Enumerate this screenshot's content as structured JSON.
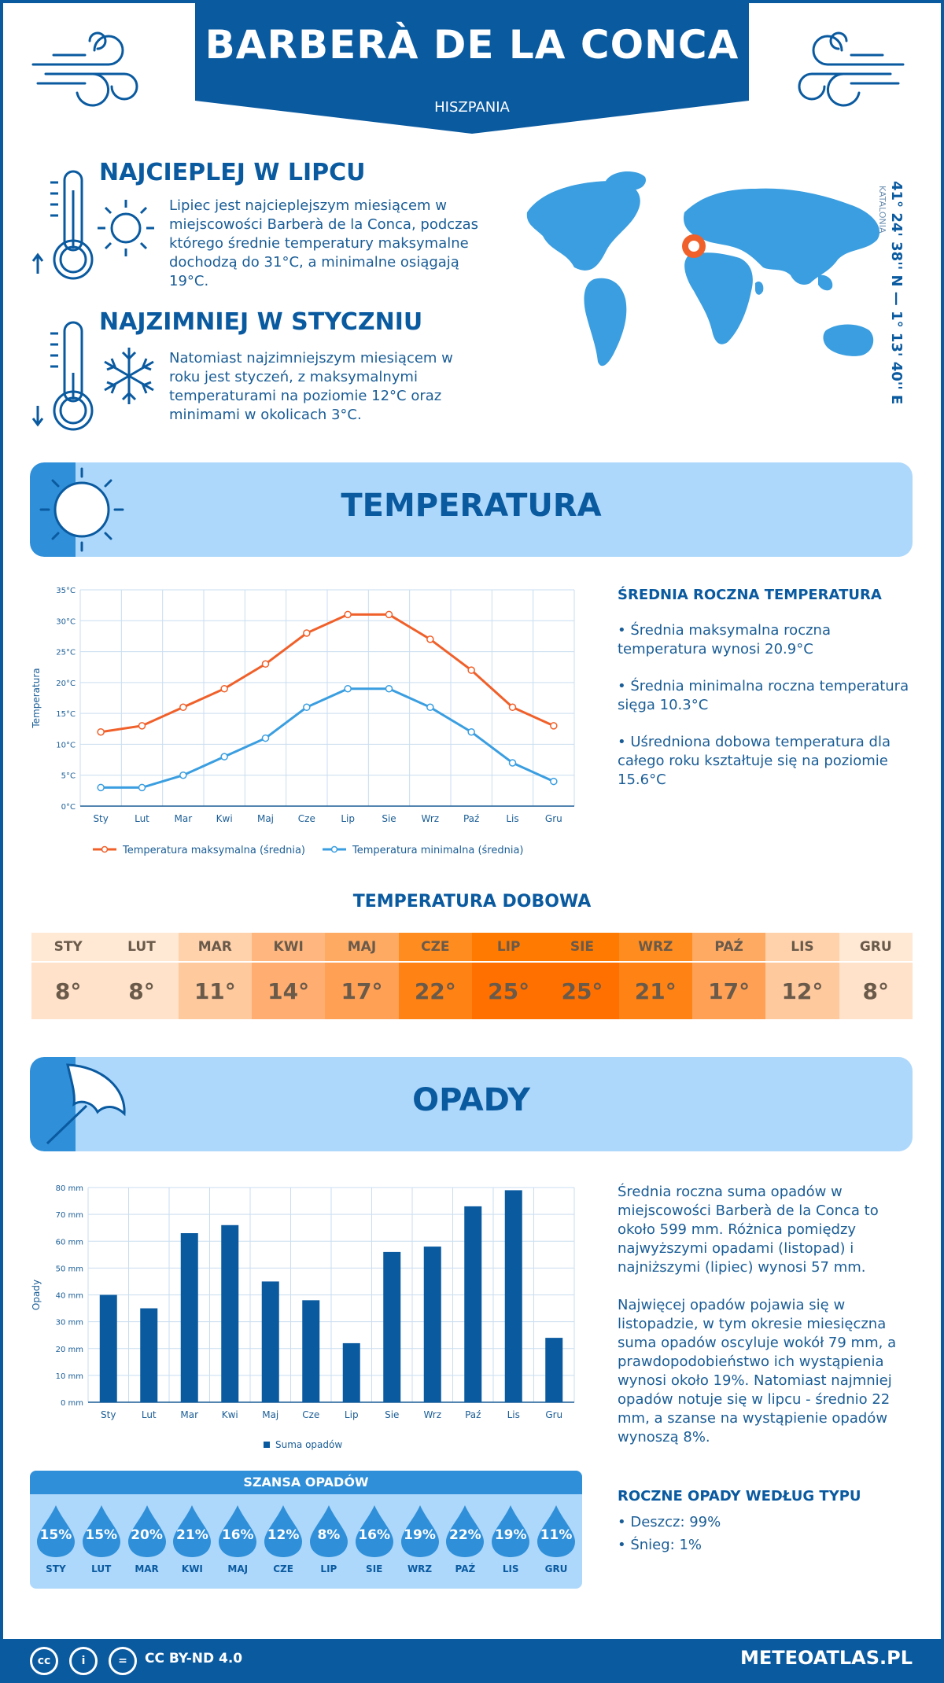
{
  "header": {
    "title": "BARBERÀ DE LA CONCA",
    "country": "HISZPANIA"
  },
  "hot": {
    "title": "NAJCIEPLEJ W LIPCU",
    "text": "Lipiec jest najcieplejszym miesiącem w miejscowości Barberà de la Conca, podczas którego średnie temperatury maksymalne dochodzą do 31°C, a minimalne osiągają 19°C."
  },
  "cold": {
    "title": "NAJZIMNIEJ W STYCZNIU",
    "text": "Natomiast najzimniejszym miesiącem w roku jest styczeń, z maksymalnymi temperaturami na poziomie 12°C oraz minimami w okolicach 3°C."
  },
  "location": {
    "coords": "41° 24' 38'' N — 1° 13' 40'' E",
    "region": "KATALONIA"
  },
  "temperature_section": {
    "title": "TEMPERATURA",
    "side_title": "ŚREDNIA ROCZNA TEMPERATURA",
    "side_p1": "• Średnia maksymalna roczna temperatura wynosi 20.9°C",
    "side_p2": "• Średnia minimalna roczna temperatura sięga 10.3°C",
    "side_p3": "• Uśredniona dobowa temperatura dla całego roku kształtuje się na poziomie 15.6°C",
    "legend_max": "Temperatura maksymalna (średnia)",
    "legend_min": "Temperatura minimalna (średnia)"
  },
  "months": [
    "Sty",
    "Lut",
    "Mar",
    "Kwi",
    "Maj",
    "Cze",
    "Lip",
    "Sie",
    "Wrz",
    "Paź",
    "Lis",
    "Gru"
  ],
  "daily": {
    "title": "TEMPERATURA DOBOWA",
    "months": [
      "STY",
      "LUT",
      "MAR",
      "KWI",
      "MAJ",
      "CZE",
      "LIP",
      "SIE",
      "WRZ",
      "PAŹ",
      "LIS",
      "GRU"
    ],
    "values": [
      "8°",
      "8°",
      "11°",
      "14°",
      "17°",
      "22°",
      "25°",
      "25°",
      "21°",
      "17°",
      "12°",
      "8°"
    ],
    "colors_head": [
      "#ffe9d4",
      "#ffe9d4",
      "#ffd2ac",
      "#ffb77f",
      "#ffaa63",
      "#ff8c1e",
      "#ff7a00",
      "#ff7a00",
      "#ff8c1e",
      "#ffaa63",
      "#ffd2ac",
      "#ffe9d4"
    ],
    "colors_val": [
      "#ffe2c9",
      "#ffe2c9",
      "#ffc99e",
      "#ffad70",
      "#ffa055",
      "#ff8214",
      "#ff7000",
      "#ff7000",
      "#ff8214",
      "#ffa055",
      "#ffc99e",
      "#ffe2c9"
    ]
  },
  "precip_section": {
    "title": "OPADY",
    "legend": "Suma opadów",
    "side_p1": "Średnia roczna suma opadów w miejscowości Barberà de la Conca to około 599 mm. Różnica pomiędzy najwyższymi opadami (listopad) i najniższymi (lipiec) wynosi 57 mm.",
    "side_p2": "Najwięcej opadów pojawia się w listopadzie, w tym okresie miesięczna suma opadów oscyluje wokół 79 mm, a prawdopodobieństwo ich wystąpienia wynosi około 19%. Natomiast najmniej opadów notuje się w lipcu - średnio 22 mm, a szanse na wystąpienie opadów wynoszą 8%.",
    "type_title": "ROCZNE OPADY WEDŁUG TYPU",
    "type_rain": "• Deszcz: 99%",
    "type_snow": "• Śnieg: 1%"
  },
  "chance": {
    "title": "SZANSA OPADÓW",
    "months": [
      "STY",
      "LUT",
      "MAR",
      "KWI",
      "MAJ",
      "CZE",
      "LIP",
      "SIE",
      "WRZ",
      "PAŹ",
      "LIS",
      "GRU"
    ],
    "values": [
      "15%",
      "15%",
      "20%",
      "21%",
      "16%",
      "12%",
      "8%",
      "16%",
      "19%",
      "22%",
      "19%",
      "11%"
    ]
  },
  "footer": {
    "license": "CC BY-ND 4.0",
    "site": "METEOATLAS.PL"
  },
  "chart_data": [
    {
      "type": "line",
      "x": [
        "Sty",
        "Lut",
        "Mar",
        "Kwi",
        "Maj",
        "Cze",
        "Lip",
        "Sie",
        "Wrz",
        "Paź",
        "Lis",
        "Gru"
      ],
      "ylabel": "Temperatura",
      "ylim": [
        0,
        35
      ],
      "yticks": [
        "0°C",
        "5°C",
        "10°C",
        "15°C",
        "20°C",
        "25°C",
        "30°C",
        "35°C"
      ],
      "series": [
        {
          "name": "Temperatura maksymalna (średnia)",
          "color": "#f0602a",
          "values": [
            12,
            13,
            16,
            19,
            23,
            28,
            31,
            31,
            27,
            22,
            16,
            13
          ]
        },
        {
          "name": "Temperatura minimalna (średnia)",
          "color": "#3a9ee0",
          "values": [
            3,
            3,
            5,
            8,
            11,
            16,
            19,
            19,
            16,
            12,
            7,
            4
          ]
        }
      ]
    },
    {
      "type": "bar",
      "categories": [
        "Sty",
        "Lut",
        "Mar",
        "Kwi",
        "Maj",
        "Cze",
        "Lip",
        "Sie",
        "Wrz",
        "Paź",
        "Lis",
        "Gru"
      ],
      "ylabel": "Opady",
      "ylim": [
        0,
        80
      ],
      "yticks": [
        "0 mm",
        "10 mm",
        "20 mm",
        "30 mm",
        "40 mm",
        "50 mm",
        "60 mm",
        "70 mm",
        "80 mm"
      ],
      "series": [
        {
          "name": "Suma opadów",
          "color": "#0a5aa0",
          "values": [
            40,
            35,
            63,
            66,
            45,
            38,
            22,
            56,
            58,
            73,
            79,
            24
          ]
        }
      ]
    }
  ]
}
